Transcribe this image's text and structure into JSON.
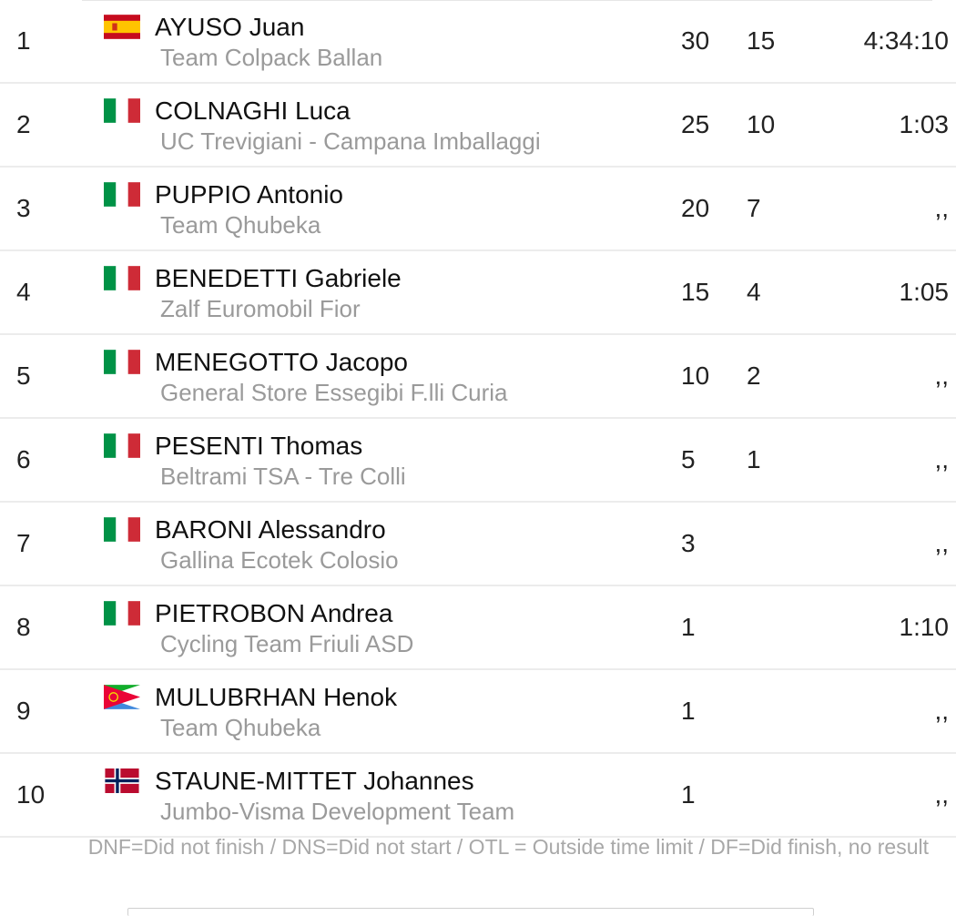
{
  "results": [
    {
      "rank": "1",
      "flag": "es",
      "rider": "AYUSO Juan",
      "team": "Team Colpack Ballan",
      "pts": "30",
      "uci": "15",
      "time": "4:34:10"
    },
    {
      "rank": "2",
      "flag": "it",
      "rider": "COLNAGHI Luca",
      "team": "UC Trevigiani - Campana Imballaggi",
      "pts": "25",
      "uci": "10",
      "time": "1:03"
    },
    {
      "rank": "3",
      "flag": "it",
      "rider": "PUPPIO Antonio",
      "team": "Team Qhubeka",
      "pts": "20",
      "uci": "7",
      "time": ",,"
    },
    {
      "rank": "4",
      "flag": "it",
      "rider": "BENEDETTI Gabriele",
      "team": "Zalf Euromobil Fior",
      "pts": "15",
      "uci": "4",
      "time": "1:05"
    },
    {
      "rank": "5",
      "flag": "it",
      "rider": "MENEGOTTO Jacopo",
      "team": "General Store Essegibi F.lli Curia",
      "pts": "10",
      "uci": "2",
      "time": ",,"
    },
    {
      "rank": "6",
      "flag": "it",
      "rider": "PESENTI Thomas",
      "team": "Beltrami TSA - Tre Colli",
      "pts": "5",
      "uci": "1",
      "time": ",,"
    },
    {
      "rank": "7",
      "flag": "it",
      "rider": "BARONI Alessandro",
      "team": "Gallina Ecotek Colosio",
      "pts": "3",
      "uci": "",
      "time": ",,"
    },
    {
      "rank": "8",
      "flag": "it",
      "rider": "PIETROBON Andrea",
      "team": "Cycling Team Friuli ASD",
      "pts": "1",
      "uci": "",
      "time": "1:10"
    },
    {
      "rank": "9",
      "flag": "er",
      "rider": "MULUBRHAN Henok",
      "team": "Team Qhubeka",
      "pts": "1",
      "uci": "",
      "time": ",,"
    },
    {
      "rank": "10",
      "flag": "no",
      "rider": "STAUNE-MITTET Johannes",
      "team": "Jumbo-Visma Development Team",
      "pts": "1",
      "uci": "",
      "time": ",,"
    }
  ],
  "footnote": "DNF=Did not finish / DNS=Did not start / OTL = Outside time limit / DF=Did finish, no result",
  "colors": {
    "italy_green": "#009246",
    "italy_red": "#ce2b37",
    "spain_red": "#c60b1e",
    "spain_yellow": "#ffc400",
    "norway_red": "#ba0c2f",
    "norway_blue": "#00205b"
  }
}
